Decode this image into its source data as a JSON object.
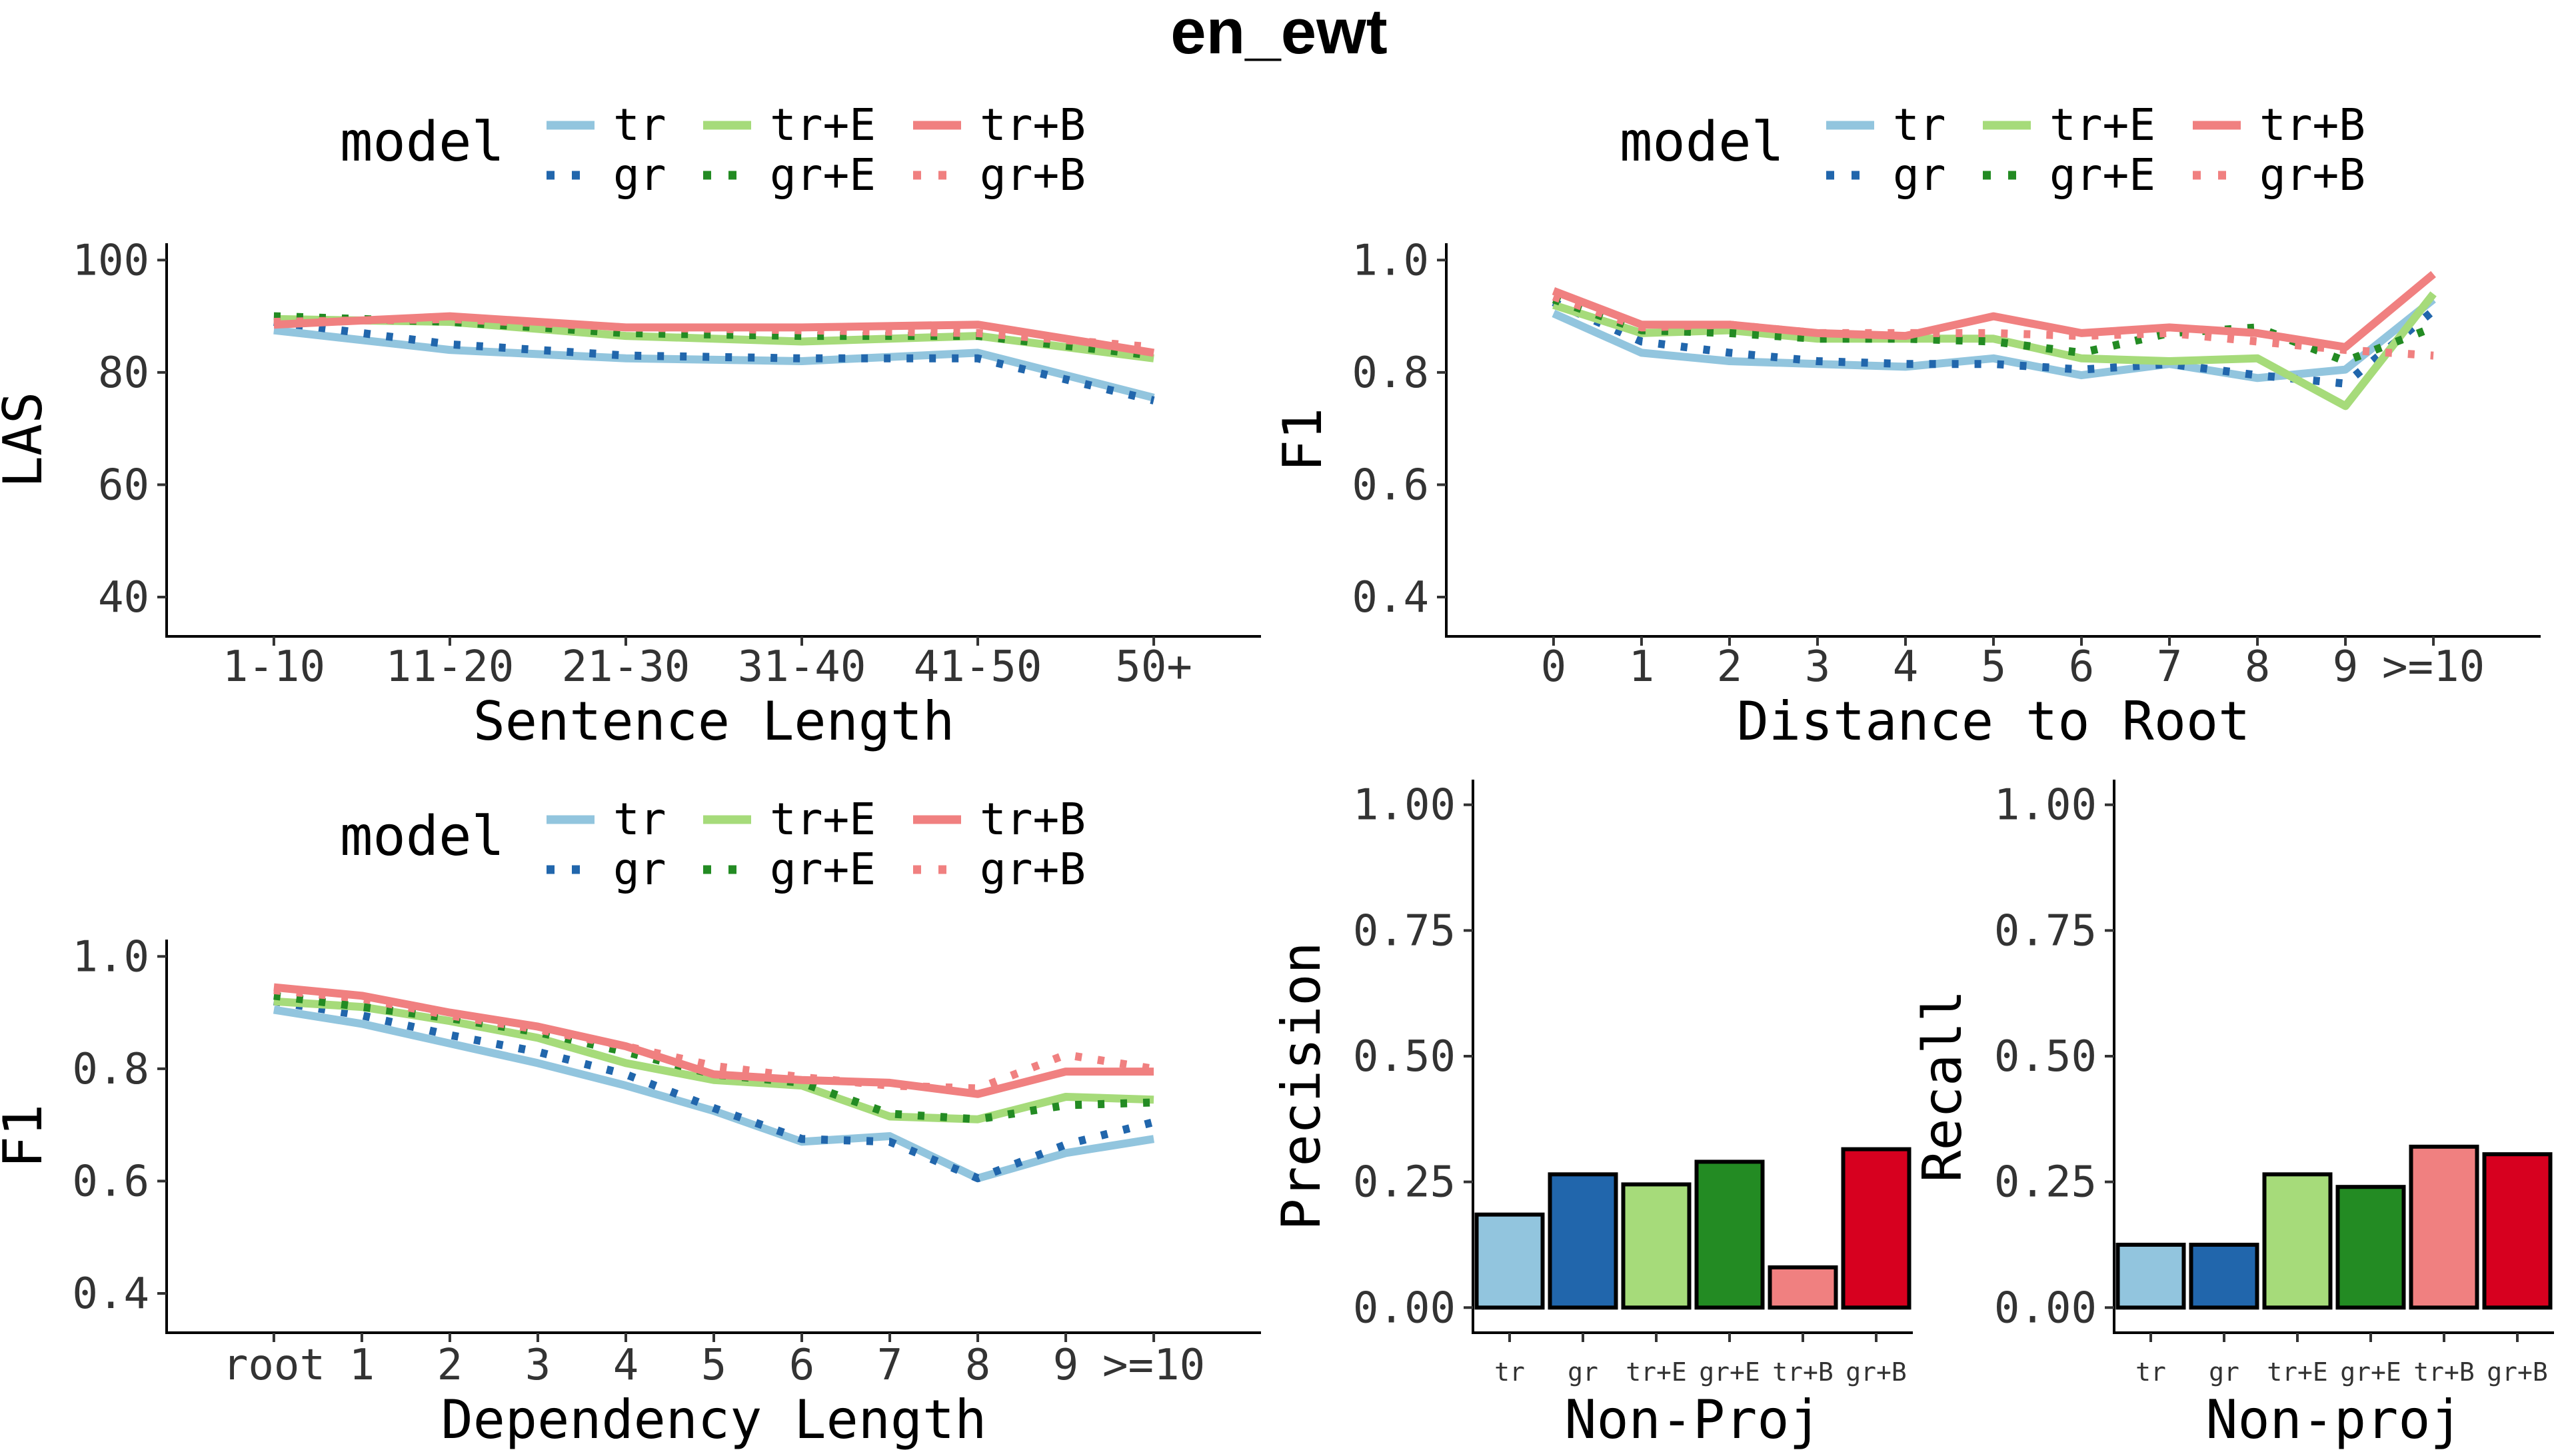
{
  "title": "en_ewt",
  "legend": {
    "title": "model",
    "entries": [
      {
        "label": "tr",
        "color": "#92C5DE",
        "dash": "solid"
      },
      {
        "label": "gr",
        "color": "#2166AC",
        "dash": "dotted"
      },
      {
        "label": "tr+E",
        "color": "#A6DB7A",
        "dash": "solid"
      },
      {
        "label": "gr+E",
        "color": "#238B23",
        "dash": "dotted"
      },
      {
        "label": "tr+B",
        "color": "#F08080",
        "dash": "solid"
      },
      {
        "label": "gr+B",
        "color": "#F08080",
        "dash": "dotted"
      }
    ]
  },
  "chart_data": [
    {
      "id": "sentence-length",
      "type": "line",
      "title": "",
      "xlabel": "Sentence Length",
      "ylabel": "LAS",
      "categories": [
        "1-10",
        "11-20",
        "21-30",
        "31-40",
        "41-50",
        "50+"
      ],
      "ylim": [
        33,
        103
      ],
      "yticks": [
        "40",
        "60",
        "80",
        "100"
      ],
      "ytick_values": [
        40,
        60,
        80,
        100
      ],
      "series": [
        {
          "name": "tr",
          "values": [
            87.5,
            84.0,
            82.5,
            82.0,
            83.5,
            75.5
          ]
        },
        {
          "name": "gr",
          "values": [
            89.0,
            85.0,
            83.0,
            82.5,
            82.5,
            75.0
          ]
        },
        {
          "name": "tr+E",
          "values": [
            89.5,
            89.0,
            86.5,
            85.5,
            86.5,
            82.5
          ]
        },
        {
          "name": "gr+E",
          "values": [
            90.0,
            89.0,
            87.0,
            86.5,
            86.5,
            83.0
          ]
        },
        {
          "name": "tr+B",
          "values": [
            88.5,
            90.0,
            88.0,
            88.0,
            88.5,
            83.5
          ]
        },
        {
          "name": "gr+B",
          "values": [
            89.0,
            89.5,
            88.0,
            87.5,
            87.0,
            84.5
          ]
        }
      ]
    },
    {
      "id": "distance-to-root",
      "type": "line",
      "title": "",
      "xlabel": "Distance to Root",
      "ylabel": "F1",
      "categories": [
        "0",
        "1",
        "2",
        "3",
        "4",
        "5",
        "6",
        "7",
        "8",
        "9",
        ">=10"
      ],
      "ylim": [
        0.33,
        1.03
      ],
      "yticks": [
        "0.4",
        "0.6",
        "0.8",
        "1.0"
      ],
      "ytick_values": [
        0.4,
        0.6,
        0.8,
        1.0
      ],
      "series": [
        {
          "name": "tr",
          "values": [
            0.905,
            0.835,
            0.82,
            0.815,
            0.81,
            0.825,
            0.795,
            0.815,
            0.79,
            0.805,
            0.93
          ]
        },
        {
          "name": "gr",
          "values": [
            0.925,
            0.855,
            0.835,
            0.82,
            0.815,
            0.815,
            0.805,
            0.815,
            0.795,
            0.78,
            0.91
          ]
        },
        {
          "name": "tr+E",
          "values": [
            0.92,
            0.87,
            0.875,
            0.86,
            0.86,
            0.86,
            0.825,
            0.82,
            0.825,
            0.74,
            0.94
          ]
        },
        {
          "name": "gr+E",
          "values": [
            0.93,
            0.875,
            0.87,
            0.86,
            0.86,
            0.855,
            0.835,
            0.87,
            0.88,
            0.82,
            0.88
          ]
        },
        {
          "name": "tr+B",
          "values": [
            0.945,
            0.885,
            0.885,
            0.87,
            0.865,
            0.9,
            0.87,
            0.88,
            0.87,
            0.845,
            0.975
          ]
        },
        {
          "name": "gr+B",
          "values": [
            0.935,
            0.88,
            0.885,
            0.87,
            0.87,
            0.87,
            0.865,
            0.87,
            0.855,
            0.84,
            0.83
          ]
        }
      ]
    },
    {
      "id": "dependency-length",
      "type": "line",
      "title": "",
      "xlabel": "Dependency Length",
      "ylabel": "F1",
      "categories": [
        "root",
        "1",
        "2",
        "3",
        "4",
        "5",
        "6",
        "7",
        "8",
        "9",
        ">=10"
      ],
      "ylim": [
        0.33,
        1.03
      ],
      "yticks": [
        "0.4",
        "0.6",
        "0.8",
        "1.0"
      ],
      "ytick_values": [
        0.4,
        0.6,
        0.8,
        1.0
      ],
      "series": [
        {
          "name": "tr",
          "values": [
            0.905,
            0.88,
            0.845,
            0.81,
            0.77,
            0.725,
            0.67,
            0.68,
            0.605,
            0.65,
            0.675
          ]
        },
        {
          "name": "gr",
          "values": [
            0.92,
            0.895,
            0.86,
            0.83,
            0.79,
            0.73,
            0.675,
            0.67,
            0.605,
            0.665,
            0.705
          ]
        },
        {
          "name": "tr+E",
          "values": [
            0.92,
            0.91,
            0.885,
            0.855,
            0.81,
            0.78,
            0.77,
            0.715,
            0.71,
            0.75,
            0.745
          ]
        },
        {
          "name": "gr+E",
          "values": [
            0.93,
            0.91,
            0.89,
            0.865,
            0.83,
            0.79,
            0.775,
            0.72,
            0.71,
            0.735,
            0.74
          ]
        },
        {
          "name": "tr+B",
          "values": [
            0.945,
            0.93,
            0.9,
            0.875,
            0.84,
            0.79,
            0.78,
            0.775,
            0.755,
            0.795,
            0.795
          ]
        },
        {
          "name": "gr+B",
          "values": [
            0.94,
            0.925,
            0.895,
            0.87,
            0.84,
            0.805,
            0.785,
            0.77,
            0.765,
            0.825,
            0.8
          ]
        }
      ]
    },
    {
      "id": "non-proj-precision",
      "type": "bar",
      "title": "",
      "xlabel": "Non-Proj",
      "ylabel": "Precision",
      "categories": [
        "tr",
        "gr",
        "tr+E",
        "gr+E",
        "tr+B",
        "gr+B"
      ],
      "values": [
        0.185,
        0.265,
        0.245,
        0.29,
        0.08,
        0.315
      ],
      "ylim": [
        -0.05,
        1.05
      ],
      "yticks": [
        "0.00",
        "0.25",
        "0.50",
        "0.75",
        "1.00"
      ],
      "ytick_values": [
        0,
        0.25,
        0.5,
        0.75,
        1.0
      ]
    },
    {
      "id": "non-proj-recall",
      "type": "bar",
      "title": "",
      "xlabel": "Non-proj",
      "ylabel": "Recall",
      "categories": [
        "tr",
        "gr",
        "tr+E",
        "gr+E",
        "tr+B",
        "gr+B"
      ],
      "values": [
        0.125,
        0.125,
        0.265,
        0.24,
        0.32,
        0.305
      ],
      "ylim": [
        -0.05,
        1.05
      ],
      "yticks": [
        "0.00",
        "0.25",
        "0.50",
        "0.75",
        "1.00"
      ],
      "ytick_values": [
        0,
        0.25,
        0.5,
        0.75,
        1.0
      ]
    }
  ],
  "bar_colors": [
    "#92C5DE",
    "#2166AC",
    "#A6DB7A",
    "#238B23",
    "#F08080",
    "#D7001F"
  ]
}
